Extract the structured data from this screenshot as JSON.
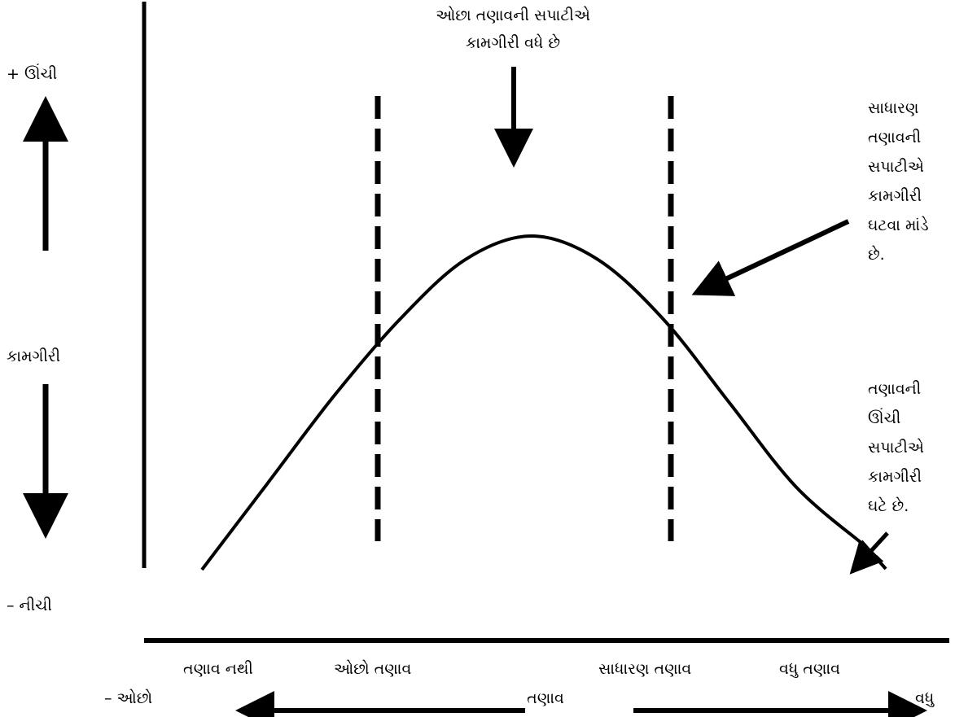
{
  "y_axis": {
    "high_label": "+ ઊંચી",
    "title": "કામગીરી",
    "low_label": "– નીચી"
  },
  "x_axis": {
    "zones": [
      "તણાવ નથી",
      "ઓછો તણાવ",
      "સાધારણ તણાવ",
      "વધુ તણાવ"
    ],
    "less_label": "– ઓછો",
    "title": "તણાવ",
    "more_label": "વધુ"
  },
  "annotations": {
    "top_line1": "ઓછા તણાવની સપાટીએ",
    "top_line2": "કામગીરી વધે છે",
    "right_upper": [
      "સાધારણ",
      "તણાવની",
      "સપાટીએ",
      "કામગીરી",
      "ઘટવા માંડે",
      "છે."
    ],
    "right_lower": [
      "તણાવની",
      "ઊંચી",
      "સપાટીએ",
      "કામગીરી",
      "ઘટે છે."
    ]
  },
  "chart_data": {
    "type": "line",
    "title": "",
    "xlabel": "તણાવ",
    "ylabel": "કામગીરી",
    "x_categories": [
      "તણાવ નથી",
      "ઓછો તણાવ",
      "સાધારણ તણાવ",
      "વધુ તણાવ"
    ],
    "series": [
      {
        "name": "",
        "x": [
          0,
          0.1,
          0.2,
          0.3,
          0.4,
          0.5,
          0.6,
          0.7,
          0.8,
          0.9,
          1.0
        ],
        "y": [
          0,
          0.26,
          0.52,
          0.75,
          0.93,
          1.0,
          0.93,
          0.75,
          0.5,
          0.25,
          0.08
        ]
      }
    ],
    "dividers": [
      "ઓછો તણાવ",
      "સાધારણ તણાવ"
    ],
    "grid": false
  },
  "colors": {
    "ink": "#000000",
    "background": "#ffffff"
  }
}
